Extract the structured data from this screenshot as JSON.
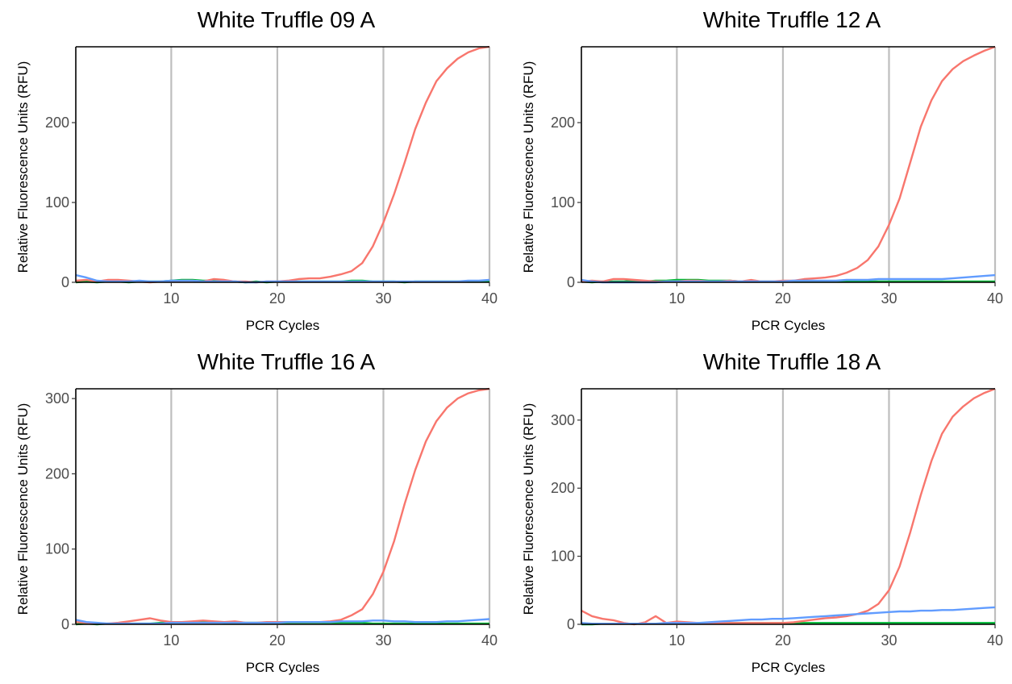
{
  "chart_data": [
    {
      "type": "line",
      "title": "White Truffle 09 A",
      "xlabel": "PCR Cycles",
      "ylabel": "Relative Fluorescence Units (RFU)",
      "xlim": [
        1,
        40
      ],
      "ylim": [
        0,
        295
      ],
      "xticks": [
        10,
        20,
        30,
        40
      ],
      "yticks": [
        0,
        100,
        200
      ],
      "vgrid": [
        10,
        20,
        30,
        40
      ],
      "x": [
        1,
        2,
        3,
        4,
        5,
        6,
        7,
        8,
        9,
        10,
        11,
        12,
        13,
        14,
        15,
        16,
        17,
        18,
        19,
        20,
        21,
        22,
        23,
        24,
        25,
        26,
        27,
        28,
        29,
        30,
        31,
        32,
        33,
        34,
        35,
        36,
        37,
        38,
        39,
        40
      ],
      "series": [
        {
          "color": "#F8766D",
          "values": [
            2,
            3,
            1,
            3,
            3,
            2,
            1,
            0,
            1,
            1,
            2,
            2,
            1,
            4,
            3,
            1,
            1,
            0,
            1,
            1,
            2,
            4,
            5,
            5,
            7,
            10,
            14,
            24,
            45,
            75,
            110,
            150,
            192,
            225,
            252,
            268,
            280,
            288,
            293,
            295
          ]
        },
        {
          "color": "#00BA38",
          "values": [
            0,
            1,
            0,
            1,
            1,
            0,
            1,
            1,
            1,
            2,
            3,
            3,
            2,
            2,
            1,
            1,
            0,
            1,
            0,
            1,
            1,
            1,
            1,
            1,
            1,
            1,
            2,
            2,
            1,
            1,
            1,
            0,
            1,
            1,
            1,
            1,
            1,
            1,
            1,
            1
          ]
        },
        {
          "color": "#619CFF",
          "values": [
            9,
            6,
            2,
            1,
            1,
            1,
            2,
            1,
            1,
            2,
            2,
            2,
            1,
            1,
            1,
            1,
            0,
            0,
            1,
            1,
            1,
            1,
            1,
            1,
            1,
            1,
            1,
            1,
            1,
            1,
            1,
            1,
            1,
            1,
            1,
            1,
            1,
            2,
            2,
            3
          ]
        }
      ]
    },
    {
      "type": "line",
      "title": "White Truffle 12 A",
      "xlabel": "PCR Cycles",
      "ylabel": "Relative Fluorescence Units (RFU)",
      "xlim": [
        1,
        40
      ],
      "ylim": [
        0,
        295
      ],
      "xticks": [
        10,
        20,
        30,
        40
      ],
      "yticks": [
        0,
        100,
        200
      ],
      "vgrid": [
        10,
        20,
        30,
        40
      ],
      "x": [
        1,
        2,
        3,
        4,
        5,
        6,
        7,
        8,
        9,
        10,
        11,
        12,
        13,
        14,
        15,
        16,
        17,
        18,
        19,
        20,
        21,
        22,
        23,
        24,
        25,
        26,
        27,
        28,
        29,
        30,
        31,
        32,
        33,
        34,
        35,
        36,
        37,
        38,
        39,
        40
      ],
      "series": [
        {
          "color": "#F8766D",
          "values": [
            1,
            2,
            1,
            4,
            4,
            3,
            2,
            1,
            1,
            1,
            2,
            2,
            1,
            1,
            2,
            1,
            3,
            1,
            1,
            2,
            2,
            4,
            5,
            6,
            8,
            12,
            18,
            28,
            45,
            72,
            105,
            150,
            195,
            228,
            252,
            267,
            277,
            284,
            290,
            295
          ]
        },
        {
          "color": "#00BA38",
          "values": [
            1,
            0,
            1,
            1,
            1,
            2,
            1,
            2,
            2,
            3,
            3,
            3,
            2,
            2,
            2,
            1,
            1,
            1,
            1,
            1,
            1,
            1,
            1,
            1,
            1,
            1,
            1,
            1,
            1,
            1,
            1,
            1,
            1,
            1,
            1,
            1,
            1,
            1,
            1,
            1
          ]
        },
        {
          "color": "#619CFF",
          "values": [
            3,
            1,
            0,
            0,
            0,
            0,
            0,
            0,
            1,
            1,
            1,
            1,
            1,
            1,
            1,
            1,
            1,
            1,
            1,
            1,
            2,
            2,
            2,
            2,
            2,
            3,
            3,
            3,
            4,
            4,
            4,
            4,
            4,
            4,
            4,
            5,
            6,
            7,
            8,
            9
          ]
        }
      ]
    },
    {
      "type": "line",
      "title": "White Truffle 16 A",
      "xlabel": "PCR Cycles",
      "ylabel": "Relative Fluorescence Units (RFU)",
      "xlim": [
        1,
        40
      ],
      "ylim": [
        0,
        313
      ],
      "xticks": [
        10,
        20,
        30,
        40
      ],
      "yticks": [
        0,
        100,
        200,
        300
      ],
      "vgrid": [
        10,
        20,
        30,
        40
      ],
      "x": [
        1,
        2,
        3,
        4,
        5,
        6,
        7,
        8,
        9,
        10,
        11,
        12,
        13,
        14,
        15,
        16,
        17,
        18,
        19,
        20,
        21,
        22,
        23,
        24,
        25,
        26,
        27,
        28,
        29,
        30,
        31,
        32,
        33,
        34,
        35,
        36,
        37,
        38,
        39,
        40
      ],
      "series": [
        {
          "color": "#F8766D",
          "values": [
            3,
            2,
            1,
            1,
            2,
            4,
            6,
            8,
            5,
            3,
            3,
            4,
            5,
            4,
            3,
            4,
            2,
            2,
            3,
            3,
            3,
            3,
            3,
            3,
            4,
            6,
            12,
            20,
            40,
            70,
            110,
            160,
            205,
            243,
            270,
            288,
            300,
            307,
            311,
            313
          ]
        },
        {
          "color": "#00BA38",
          "values": [
            0,
            1,
            0,
            1,
            1,
            1,
            1,
            1,
            2,
            3,
            3,
            3,
            3,
            3,
            2,
            2,
            2,
            2,
            2,
            2,
            2,
            2,
            2,
            2,
            2,
            2,
            2,
            2,
            1,
            1,
            1,
            1,
            1,
            1,
            1,
            1,
            1,
            1,
            1,
            1
          ]
        },
        {
          "color": "#619CFF",
          "values": [
            6,
            3,
            2,
            1,
            1,
            1,
            1,
            1,
            1,
            2,
            2,
            2,
            2,
            2,
            2,
            2,
            2,
            2,
            2,
            2,
            3,
            3,
            3,
            3,
            3,
            4,
            4,
            4,
            5,
            5,
            4,
            4,
            3,
            3,
            3,
            4,
            4,
            5,
            6,
            7
          ]
        }
      ]
    },
    {
      "type": "line",
      "title": "White Truffle 18 A",
      "xlabel": "PCR Cycles",
      "ylabel": "Relative Fluorescence Units (RFU)",
      "xlim": [
        1,
        40
      ],
      "ylim": [
        0,
        346
      ],
      "xticks": [
        10,
        20,
        30,
        40
      ],
      "yticks": [
        0,
        100,
        200,
        300
      ],
      "vgrid": [
        10,
        20,
        30,
        40
      ],
      "x": [
        1,
        2,
        3,
        4,
        5,
        6,
        7,
        8,
        9,
        10,
        11,
        12,
        13,
        14,
        15,
        16,
        17,
        18,
        19,
        20,
        21,
        22,
        23,
        24,
        25,
        26,
        27,
        28,
        29,
        30,
        31,
        32,
        33,
        34,
        35,
        36,
        37,
        38,
        39,
        40
      ],
      "series": [
        {
          "color": "#F8766D",
          "values": [
            20,
            12,
            8,
            6,
            2,
            0,
            3,
            12,
            2,
            4,
            3,
            2,
            2,
            2,
            2,
            2,
            2,
            2,
            2,
            2,
            3,
            5,
            7,
            9,
            10,
            12,
            15,
            20,
            30,
            50,
            85,
            135,
            190,
            240,
            280,
            305,
            320,
            332,
            340,
            346
          ]
        },
        {
          "color": "#00BA38",
          "values": [
            0,
            0,
            1,
            1,
            1,
            1,
            1,
            1,
            1,
            2,
            2,
            2,
            2,
            2,
            2,
            2,
            2,
            2,
            2,
            2,
            2,
            2,
            2,
            2,
            2,
            2,
            2,
            2,
            2,
            2,
            2,
            2,
            2,
            2,
            2,
            2,
            2,
            2,
            2,
            2
          ]
        },
        {
          "color": "#619CFF",
          "values": [
            2,
            1,
            1,
            1,
            1,
            1,
            1,
            1,
            2,
            2,
            2,
            2,
            3,
            4,
            5,
            6,
            7,
            7,
            8,
            8,
            9,
            10,
            11,
            12,
            13,
            14,
            15,
            16,
            17,
            18,
            19,
            19,
            20,
            20,
            21,
            21,
            22,
            23,
            24,
            25
          ]
        }
      ]
    }
  ]
}
